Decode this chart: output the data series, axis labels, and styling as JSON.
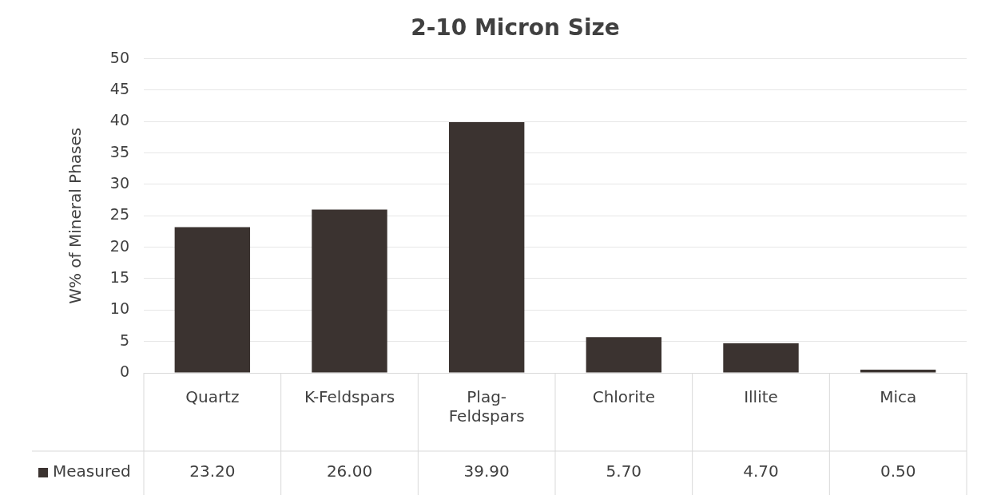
{
  "chart_data": {
    "type": "bar",
    "title": "2-10 Micron Size",
    "ylabel": "W% of Mineral Phases",
    "categories": [
      "Quartz",
      "K-Feldspars",
      "Plag-Feldspars",
      "Chlorite",
      "Illite",
      "Mica"
    ],
    "series": [
      {
        "name": "Measured",
        "color": "#3b3330",
        "values": [
          23.2,
          26.0,
          39.9,
          5.7,
          4.7,
          0.5
        ],
        "value_labels": [
          "23.20",
          "26.00",
          "39.90",
          "5.70",
          "4.70",
          "0.50"
        ]
      }
    ],
    "ylim": [
      0,
      50
    ],
    "yticks": [
      0,
      5,
      10,
      15,
      20,
      25,
      30,
      35,
      40,
      45,
      50
    ],
    "grid": "y",
    "legend": "bottom"
  }
}
